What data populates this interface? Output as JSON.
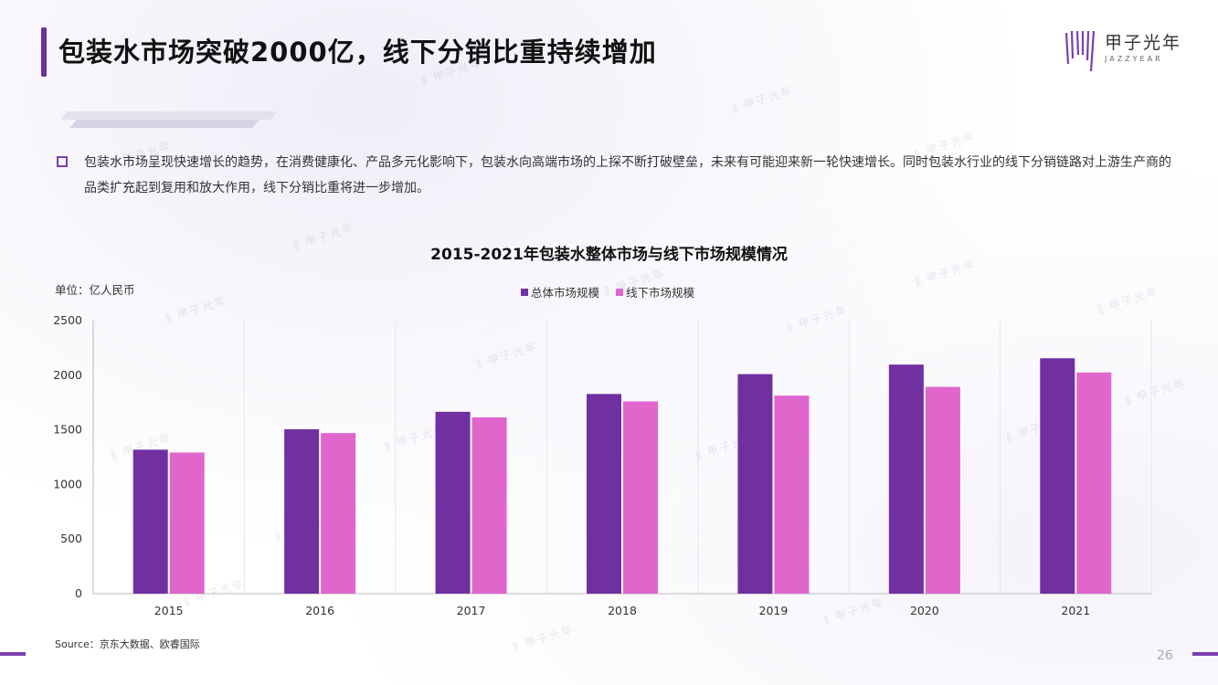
{
  "page": {
    "title": "包装水市场突破2000亿，线下分销比重持续增加",
    "summary": "包装水市场呈现快速增长的趋势，在消费健康化、产品多元化影响下，包装水向高端市场的上探不断打破壁垒，未来有可能迎来新一轮快速增长。同时包装水行业的线下分销链路对上游生产商的品类扩充起到复用和放大作用，线下分销比重将进一步增加。",
    "source": "Source：京东大数据、欧睿国际",
    "page_number": "26"
  },
  "logo": {
    "text": "甲子光年",
    "sub": "JAZZYEAR",
    "watermark_text": "甲子光年"
  },
  "colors": {
    "accent": "#6b2fa0",
    "series_total": "#7030a0",
    "series_offline": "#e066cc"
  },
  "chart_data": {
    "type": "bar",
    "title": "2015-2021年包装水整体市场与线下市场规模情况",
    "unit_label": "单位：亿人民币",
    "categories": [
      "2015",
      "2016",
      "2017",
      "2018",
      "2019",
      "2020",
      "2021"
    ],
    "series": [
      {
        "name": "总体市场规模",
        "color": "#7030a0",
        "values": [
          1318,
          1505,
          1665,
          1828,
          2010,
          2097,
          2155
        ]
      },
      {
        "name": "线下市场规模",
        "color": "#e066cc",
        "values": [
          1292,
          1470,
          1614,
          1760,
          1813,
          1893,
          2025
        ]
      }
    ],
    "ylim": [
      0,
      2500
    ],
    "yticks": [
      "0",
      "500",
      "1000",
      "1500",
      "2000",
      "2500"
    ],
    "legend_position": "top-center",
    "grid": "vertical"
  }
}
